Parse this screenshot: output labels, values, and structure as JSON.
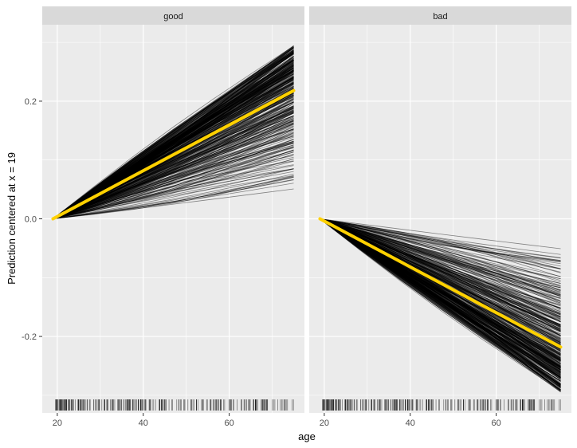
{
  "chart_data": {
    "type": "line",
    "title": "",
    "xlabel": "age",
    "ylabel": "Prediction centered at x = 19",
    "facets": [
      {
        "label": "good",
        "ice_end_range": [
          0.035,
          0.295
        ],
        "series": [
          {
            "name": "",
            "role": "average",
            "x": [
              19,
              75
            ],
            "y": [
              0,
              0.218
            ]
          }
        ]
      },
      {
        "label": "bad",
        "ice_end_range": [
          -0.295,
          -0.035
        ],
        "series": [
          {
            "name": "",
            "role": "average",
            "x": [
              19,
              75
            ],
            "y": [
              0,
              -0.218
            ]
          }
        ]
      }
    ],
    "ice_line_count": 400,
    "xlim": [
      16.5,
      77.5
    ],
    "ylim": [
      -0.33,
      0.33
    ],
    "x_ticks": [
      20,
      40,
      60
    ],
    "x_tick_labels": [
      "20",
      "40",
      "60"
    ],
    "y_ticks": [
      -0.2,
      0.0,
      0.2
    ],
    "y_tick_labels": [
      "-0.2",
      "0.0",
      "0.2"
    ],
    "rug": true,
    "grid": true,
    "legend": "none",
    "colors": {
      "panel_bg": "#ebebeb",
      "strip_bg": "#d9d9d9",
      "grid": "#ffffff",
      "ice_lines": "#000000",
      "average_line": "#ffd100"
    }
  }
}
